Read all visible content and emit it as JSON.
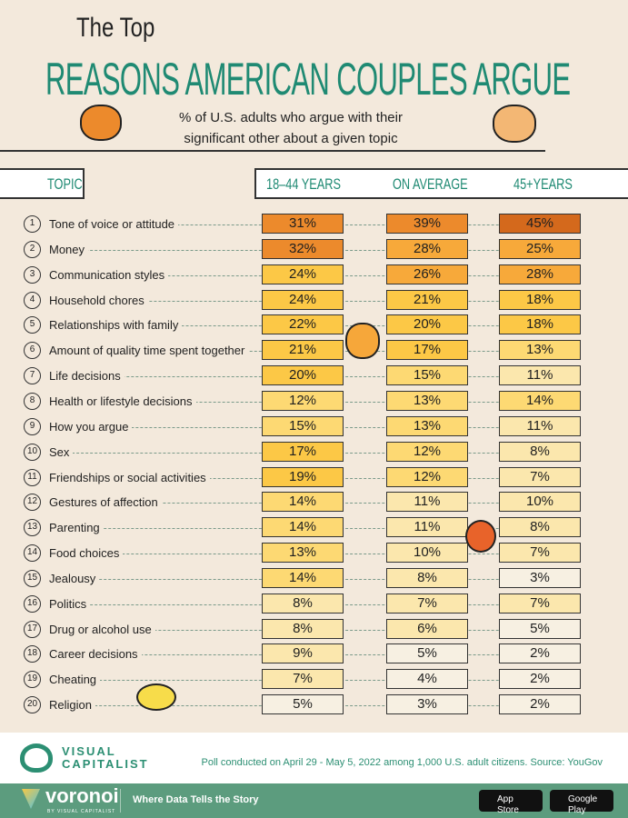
{
  "header": {
    "title_top": "The Top",
    "title_main": "REASONS AMERICAN COUPLES ARGUE",
    "subtitle": "% of U.S. adults who argue with their significant other about a given topic"
  },
  "chart_data": {
    "type": "heatmap",
    "title": "The Top Reasons American Couples Argue",
    "subtitle": "% of U.S. adults who argue with their significant other about a given topic",
    "column_header": "TOPIC",
    "series": [
      {
        "name": "18–44 YEARS",
        "values": [
          31,
          32,
          24,
          24,
          22,
          21,
          20,
          12,
          15,
          17,
          19,
          14,
          14,
          13,
          14,
          8,
          8,
          9,
          7,
          5
        ]
      },
      {
        "name": "ON AVERAGE",
        "values": [
          39,
          28,
          26,
          21,
          20,
          17,
          15,
          13,
          13,
          12,
          12,
          11,
          11,
          10,
          8,
          7,
          6,
          5,
          4,
          3
        ]
      },
      {
        "name": "45+YEARS",
        "values": [
          45,
          25,
          28,
          18,
          18,
          13,
          11,
          14,
          11,
          8,
          7,
          10,
          8,
          7,
          3,
          7,
          5,
          2,
          2,
          2
        ]
      }
    ],
    "categories": [
      "Tone of voice or attitude",
      "Money",
      "Communication styles",
      "Household chores",
      "Relationships with family",
      "Amount of quality time spent together",
      "Life decisions",
      "Health or lifestyle decisions",
      "How you argue",
      "Sex",
      "Friendships or social activities",
      "Gestures of affection",
      "Parenting",
      "Food choices",
      "Jealousy",
      "Politics",
      "Drug or alcohol use",
      "Career decisions",
      "Cheating",
      "Religion"
    ],
    "unit": "%"
  },
  "colors": {
    "accent": "#1f8a73",
    "darkest": "#d4691c",
    "orange": "#ec8a2c",
    "amber": "#f7a93a",
    "yellow": "#fcc846",
    "light": "#fdd973",
    "pale": "#fbe7ad",
    "palest": "#f7f0e2"
  },
  "footer": {
    "brand": "VISUAL CAPITALIST",
    "source": "Poll conducted on April 29 - May 5, 2022 among 1,000 U.S. adult citizens. Source: YouGov",
    "voronoi": "voronoi",
    "voronoi_sub": "BY VISUAL CAPITALIST",
    "tagline": "Where Data Tells the Story",
    "app_store": "App Store",
    "google_play": "Google Play"
  }
}
